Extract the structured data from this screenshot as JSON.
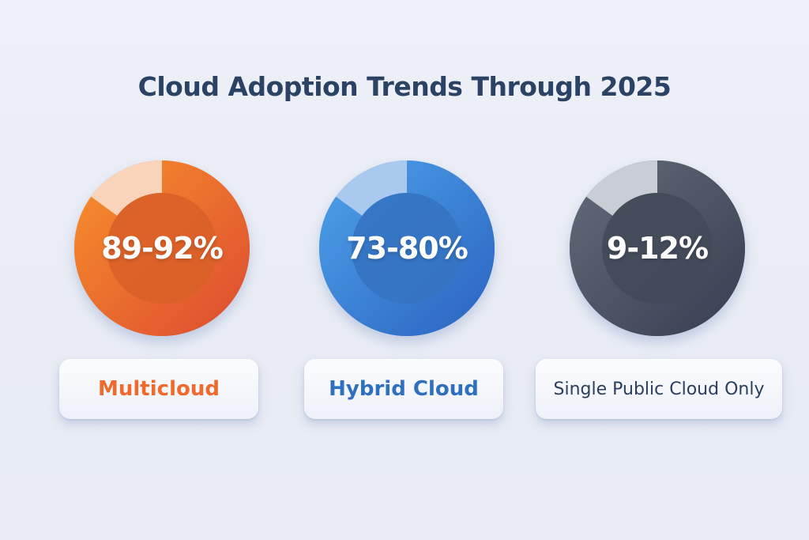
{
  "title": "Cloud Adoption Trends Through 2025",
  "chart_data": {
    "type": "pie",
    "subtype": "donut",
    "title": "Cloud Adoption Trends Through 2025",
    "series": [
      {
        "name": "Multicloud",
        "value_label": "89-92%",
        "range": [
          89,
          92
        ],
        "ring_filled_fraction": 0.85,
        "color": "#ef6a2c",
        "color_light": "#f9d4bb",
        "label_color": "#ef6a2c"
      },
      {
        "name": "Hybrid Cloud",
        "value_label": "73-80%",
        "range": [
          73,
          80
        ],
        "ring_filled_fraction": 0.85,
        "color": "#3a7fd5",
        "color_light": "#a9c9ef",
        "label_color": "#2f6fc0"
      },
      {
        "name": "Single Public Cloud Only",
        "value_label": "9-12%",
        "range": [
          9,
          12
        ],
        "ring_filled_fraction": 0.85,
        "color": "#4a5263",
        "color_light": "#c9cdd6",
        "label_color": "#2a3f5c"
      }
    ]
  }
}
